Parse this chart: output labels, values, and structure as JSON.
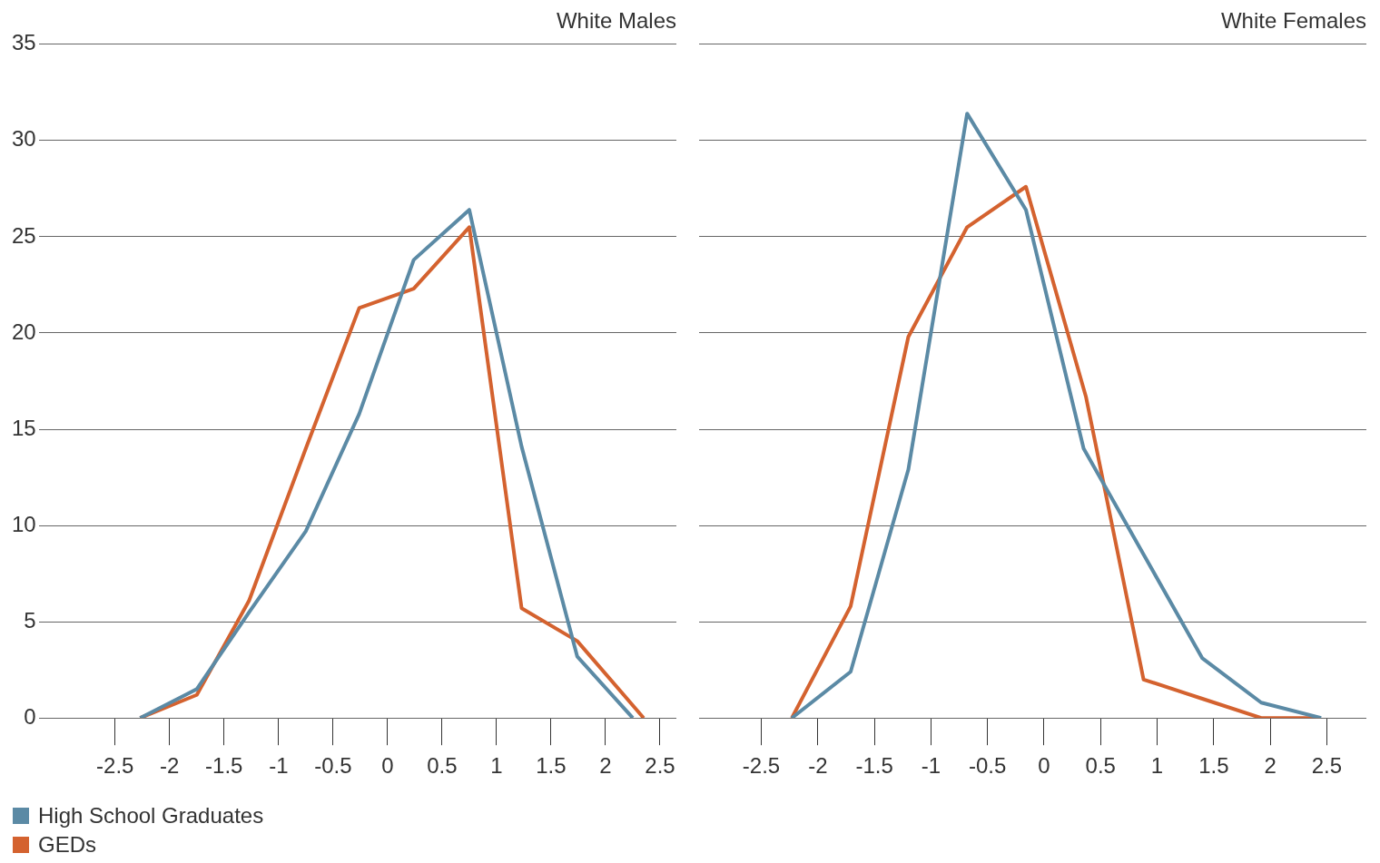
{
  "chart_data": [
    {
      "type": "line",
      "title": "White Males",
      "xlim": [
        -3.2,
        2.65
      ],
      "xticks": [
        -2.5,
        -2,
        -1.5,
        -1,
        -0.5,
        0,
        0.5,
        1,
        1.5,
        2,
        2.5
      ],
      "ylim": [
        0,
        35
      ],
      "yticks": [
        0,
        5,
        10,
        15,
        20,
        25,
        30,
        35
      ],
      "grid": "y",
      "legend": "bottom left",
      "marker": "none",
      "line_style": "solid",
      "series": [
        {
          "name": "High School Graduates",
          "color": "#5b8aa5",
          "x": [
            -2.27,
            -1.75,
            -1.27,
            -0.75,
            -0.26,
            0.24,
            0.75,
            1.23,
            1.74,
            2.25
          ],
          "values": [
            0,
            1.5,
            5.5,
            9.7,
            15.8,
            23.8,
            26.4,
            14.1,
            3.2,
            0
          ]
        },
        {
          "name": "GEDs",
          "color": "#d4622f",
          "x": [
            -2.27,
            -1.75,
            -1.27,
            -0.75,
            -0.26,
            0.24,
            0.75,
            1.23,
            1.74,
            2.35
          ],
          "values": [
            0,
            1.2,
            6.1,
            14,
            21.3,
            22.3,
            25.5,
            5.7,
            4,
            0
          ]
        }
      ]
    },
    {
      "type": "line",
      "title": "White Females",
      "xlim": [
        -3.05,
        2.85
      ],
      "xticks": [
        -2.5,
        -2,
        -1.5,
        -1,
        -0.5,
        0,
        0.5,
        1,
        1.5,
        2,
        2.5
      ],
      "ylim": [
        0,
        35
      ],
      "yticks": [
        0,
        5,
        10,
        15,
        20,
        25,
        30,
        35
      ],
      "grid": "y",
      "tick_labels": "x",
      "legend": false,
      "marker": "none",
      "line_style": "solid",
      "series": [
        {
          "color": "#5b8aa5",
          "x": [
            -2.23,
            -1.71,
            -1.2,
            -0.68,
            -0.16,
            0.35,
            0.87,
            1.4,
            1.92,
            2.45
          ],
          "values": [
            0,
            2.4,
            12.9,
            31.4,
            26.4,
            14,
            8.6,
            3.1,
            0.8,
            0
          ]
        },
        {
          "color": "#d4622f",
          "x": [
            -2.23,
            -1.71,
            -1.2,
            -0.68,
            -0.16,
            0.37,
            0.88,
            1.4,
            1.92,
            2.44
          ],
          "values": [
            0,
            5.8,
            19.8,
            25.5,
            27.6,
            16.7,
            2,
            1,
            0,
            0
          ]
        }
      ]
    }
  ]
}
